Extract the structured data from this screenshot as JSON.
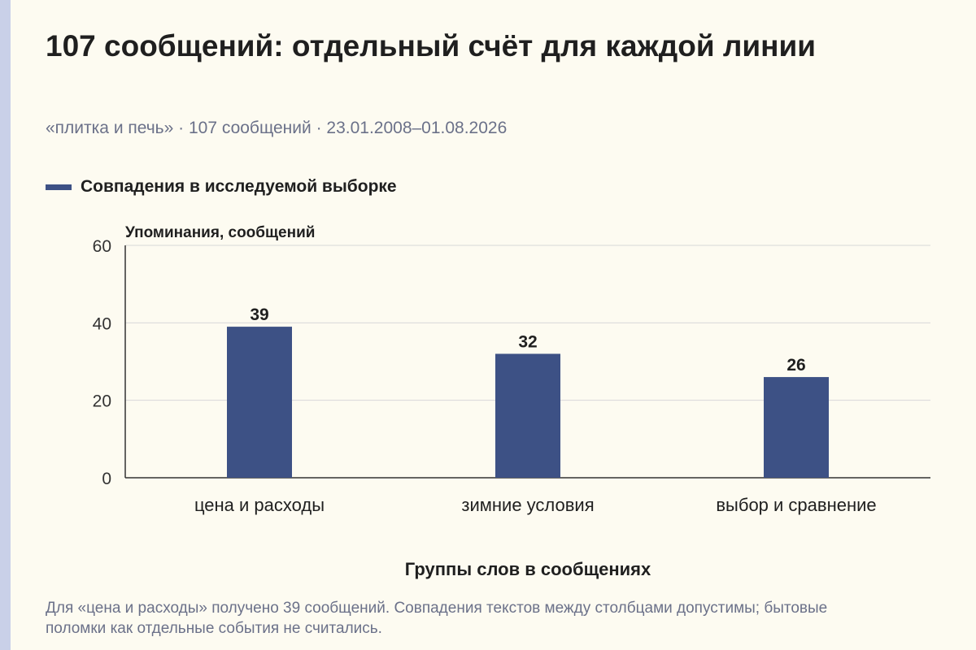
{
  "title": "107 сообщений: отдельный счёт для каждой линии",
  "subtitle": "«плитка и печь» · 107 сообщений · 23.01.2008–01.08.2026",
  "note": "Для «цена и расходы» получено 39 сообщений. Совпадения текстов между столбцами допустимы; бытовые поломки как отдельные события не считались.",
  "colors": {
    "bar": "#3d5185",
    "grid": "#d8d8d8",
    "axis": "#333333",
    "background": "#fdfbf1"
  },
  "chart_data": {
    "type": "bar",
    "categories": [
      "цена и расходы",
      "зимние условия",
      "выбор и сравнение"
    ],
    "series": [
      {
        "name": "Совпадения в исследуемой выборке",
        "values": [
          39,
          32,
          26
        ]
      }
    ],
    "ylabel": "Упоминания, сообщений",
    "xlabel": "Группы слов в сообщениях",
    "ylim": [
      0,
      60
    ],
    "yticks": [
      0,
      20,
      40,
      60
    ],
    "grid": true,
    "legend": "top-left",
    "data_labels": true
  }
}
